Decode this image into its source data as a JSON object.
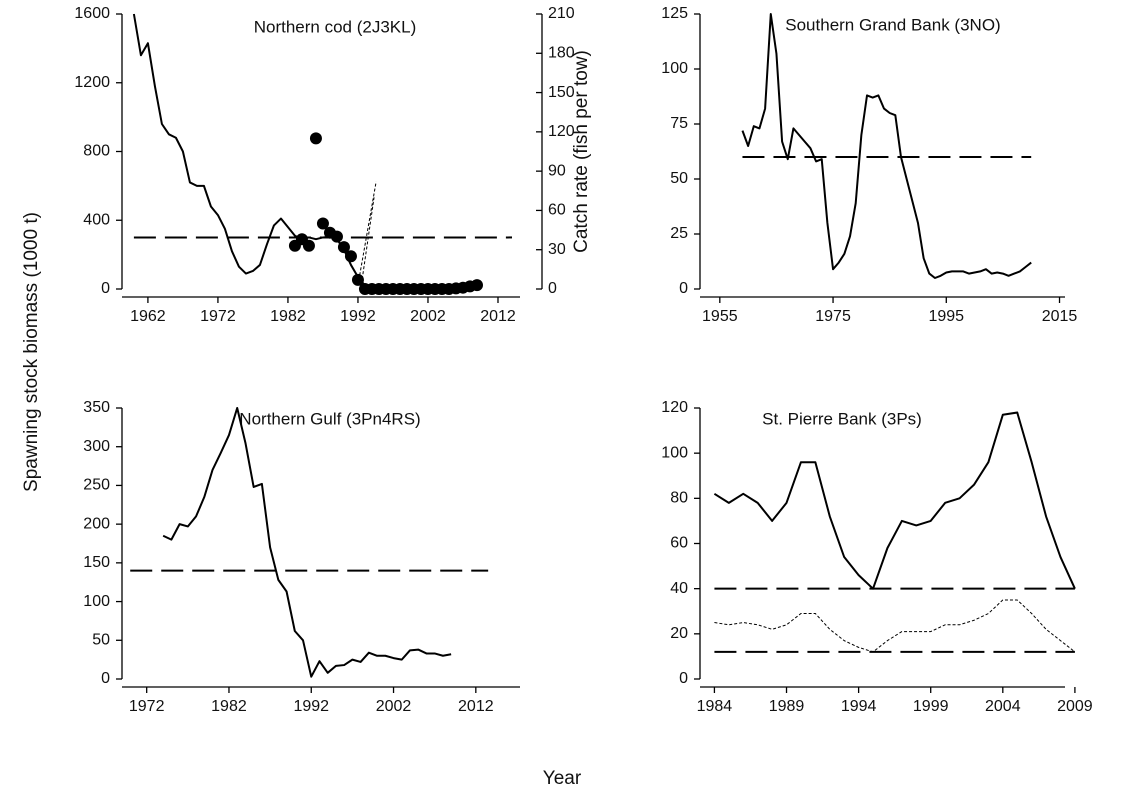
{
  "ylabel": "Spawning stock biomass (1000 t)",
  "xlabel": "Year",
  "chart_data": [
    {
      "type": "line",
      "title": "Northern cod (2J3KL)",
      "color": "#000000",
      "xlim": [
        1958.3,
        2018
      ],
      "xticks": [
        1962,
        1972,
        1982,
        1992,
        2002,
        2012
      ],
      "ylim": [
        0,
        1600
      ],
      "yticks": [
        0,
        400,
        800,
        1200,
        1600
      ],
      "y2lim": [
        0,
        210
      ],
      "y2ticks": [
        0,
        30,
        60,
        90,
        120,
        150,
        180,
        210
      ],
      "y2label": "Catch rate (fish per tow)",
      "series": [
        {
          "style": "solid",
          "x": [
            1960,
            1961,
            1962,
            1963,
            1964,
            1965,
            1966,
            1967,
            1968,
            1969,
            1970,
            1971,
            1972,
            1973,
            1974,
            1975,
            1976,
            1977,
            1978,
            1979,
            1980,
            1981,
            1982,
            1983,
            1984,
            1985,
            1986,
            1987,
            1988,
            1989,
            1990,
            1991,
            1992,
            1993
          ],
          "values": [
            1600,
            1360,
            1430,
            1180,
            960,
            900,
            880,
            800,
            620,
            600,
            600,
            480,
            430,
            350,
            220,
            130,
            90,
            105,
            140,
            260,
            370,
            410,
            360,
            310,
            290,
            300,
            290,
            300,
            305,
            290,
            230,
            140,
            70,
            20
          ]
        },
        {
          "style": "dashed",
          "x": [
            1960,
            2014
          ],
          "values": [
            300,
            300
          ]
        },
        {
          "style": "dotted",
          "axis": "y2",
          "x": [
            1992,
            1994.6
          ],
          "values": [
            3,
            82
          ]
        },
        {
          "style": "dotted",
          "axis": "y2",
          "x": [
            1992.4,
            1994.3
          ],
          "values": [
            0,
            70
          ]
        },
        {
          "style": "points",
          "axis": "y2",
          "x": [
            1983,
            1984,
            1985,
            1986,
            1987,
            1988,
            1989,
            1990,
            1991,
            1992,
            1993,
            1994,
            1995,
            1996,
            1997,
            1998,
            1999,
            2000,
            2001,
            2002,
            2003,
            2004,
            2005,
            2006,
            2007,
            2008,
            2009
          ],
          "values": [
            33,
            38,
            33,
            115,
            50,
            43,
            40,
            32,
            25,
            7,
            0,
            0,
            0,
            0,
            0,
            0,
            0,
            0,
            0,
            0,
            0,
            0,
            0,
            0.5,
            1,
            2,
            3
          ]
        }
      ]
    },
    {
      "type": "line",
      "title": "Southern Grand Bank (3NO)",
      "color": "#000000",
      "xlim": [
        1951.5,
        2019.5
      ],
      "xticks": [
        1955,
        1975,
        1995,
        2015
      ],
      "ylim": [
        0,
        125
      ],
      "yticks": [
        0,
        25,
        50,
        75,
        100,
        125
      ],
      "series": [
        {
          "style": "solid",
          "x": [
            1959,
            1960,
            1961,
            1962,
            1963,
            1964,
            1965,
            1966,
            1967,
            1968,
            1969,
            1970,
            1971,
            1972,
            1973,
            1974,
            1975,
            1976,
            1977,
            1978,
            1979,
            1980,
            1981,
            1982,
            1983,
            1984,
            1985,
            1986,
            1987,
            1988,
            1989,
            1990,
            1991,
            1992,
            1993,
            1994,
            1995,
            1996,
            1997,
            1998,
            1999,
            2000,
            2001,
            2002,
            2003,
            2004,
            2005,
            2006,
            2007,
            2008,
            2009,
            2010
          ],
          "values": [
            72,
            65,
            74,
            73,
            82,
            125,
            107,
            67,
            59,
            73,
            70,
            67,
            64,
            58,
            59,
            30,
            9,
            12,
            16,
            24,
            39,
            70,
            88,
            87,
            88,
            82,
            80,
            79,
            60,
            50,
            40,
            30,
            14,
            7,
            5,
            6,
            7.5,
            8,
            8,
            8,
            7,
            7.5,
            8,
            9,
            7,
            7.5,
            7,
            6,
            7,
            8,
            10,
            12
          ]
        },
        {
          "style": "dashed",
          "x": [
            1959,
            2010
          ],
          "values": [
            60,
            60
          ]
        }
      ]
    },
    {
      "type": "line",
      "title": "Northern Gulf (3Pn4RS)",
      "color": "#000000",
      "xlim": [
        1969,
        2019.8
      ],
      "xticks": [
        1972,
        1982,
        1992,
        2002,
        2012
      ],
      "ylim": [
        0,
        350
      ],
      "yticks": [
        0,
        50,
        100,
        150,
        200,
        250,
        300,
        350
      ],
      "series": [
        {
          "style": "solid",
          "x": [
            1974,
            1975,
            1976,
            1977,
            1978,
            1979,
            1980,
            1981,
            1982,
            1983,
            1984,
            1985,
            1986,
            1987,
            1988,
            1989,
            1990,
            1991,
            1992,
            1993,
            1994,
            1995,
            1996,
            1997,
            1998,
            1999,
            2000,
            2001,
            2002,
            2003,
            2004,
            2005,
            2006,
            2007,
            2008,
            2009
          ],
          "values": [
            185,
            180,
            200,
            197,
            210,
            235,
            270,
            292,
            315,
            350,
            305,
            248,
            252,
            170,
            128,
            113,
            62,
            50,
            3,
            23,
            8,
            17,
            18,
            25,
            22,
            34,
            30,
            30,
            27,
            25,
            37,
            38,
            33,
            33,
            30,
            32
          ]
        },
        {
          "style": "dashed",
          "x": [
            1970,
            2013.5
          ],
          "values": [
            140,
            140
          ]
        }
      ]
    },
    {
      "type": "line",
      "title": "St. Pierre Bank (3Ps)",
      "color": "#000000",
      "xlim": [
        1983,
        2009.7
      ],
      "xticks": [
        1984,
        1989,
        1994,
        1999,
        2004,
        2009
      ],
      "ylim": [
        0,
        120
      ],
      "yticks": [
        0,
        20,
        40,
        60,
        80,
        100,
        120
      ],
      "series": [
        {
          "style": "solid",
          "x": [
            1984,
            1985,
            1986,
            1987,
            1988,
            1989,
            1990,
            1991,
            1992,
            1993,
            1994,
            1995,
            1996,
            1997,
            1998,
            1999,
            2000,
            2001,
            2002,
            2003,
            2004,
            2005,
            2006,
            2007,
            2008,
            2009
          ],
          "values": [
            82,
            78,
            82,
            78,
            70,
            78,
            96,
            96,
            72,
            54,
            46,
            40,
            58,
            70,
            68,
            70,
            78,
            80,
            86,
            96,
            117,
            118,
            96,
            72,
            54,
            40
          ]
        },
        {
          "style": "dotted",
          "x": [
            1984,
            1985,
            1986,
            1987,
            1988,
            1989,
            1990,
            1991,
            1992,
            1993,
            1994,
            1995,
            1996,
            1997,
            1998,
            1999,
            2000,
            2001,
            2002,
            2003,
            2004,
            2005,
            2006,
            2007,
            2008,
            2009
          ],
          "values": [
            25,
            24,
            25,
            24,
            22,
            24,
            29,
            29,
            22,
            17,
            14,
            12,
            17,
            21,
            21,
            21,
            24,
            24,
            26,
            29,
            35,
            35,
            29,
            22,
            17,
            12
          ]
        },
        {
          "style": "dashed",
          "x": [
            1984,
            2009
          ],
          "values": [
            40,
            40
          ]
        },
        {
          "style": "dashed",
          "x": [
            1984,
            2009
          ],
          "values": [
            12,
            12
          ]
        }
      ]
    }
  ]
}
